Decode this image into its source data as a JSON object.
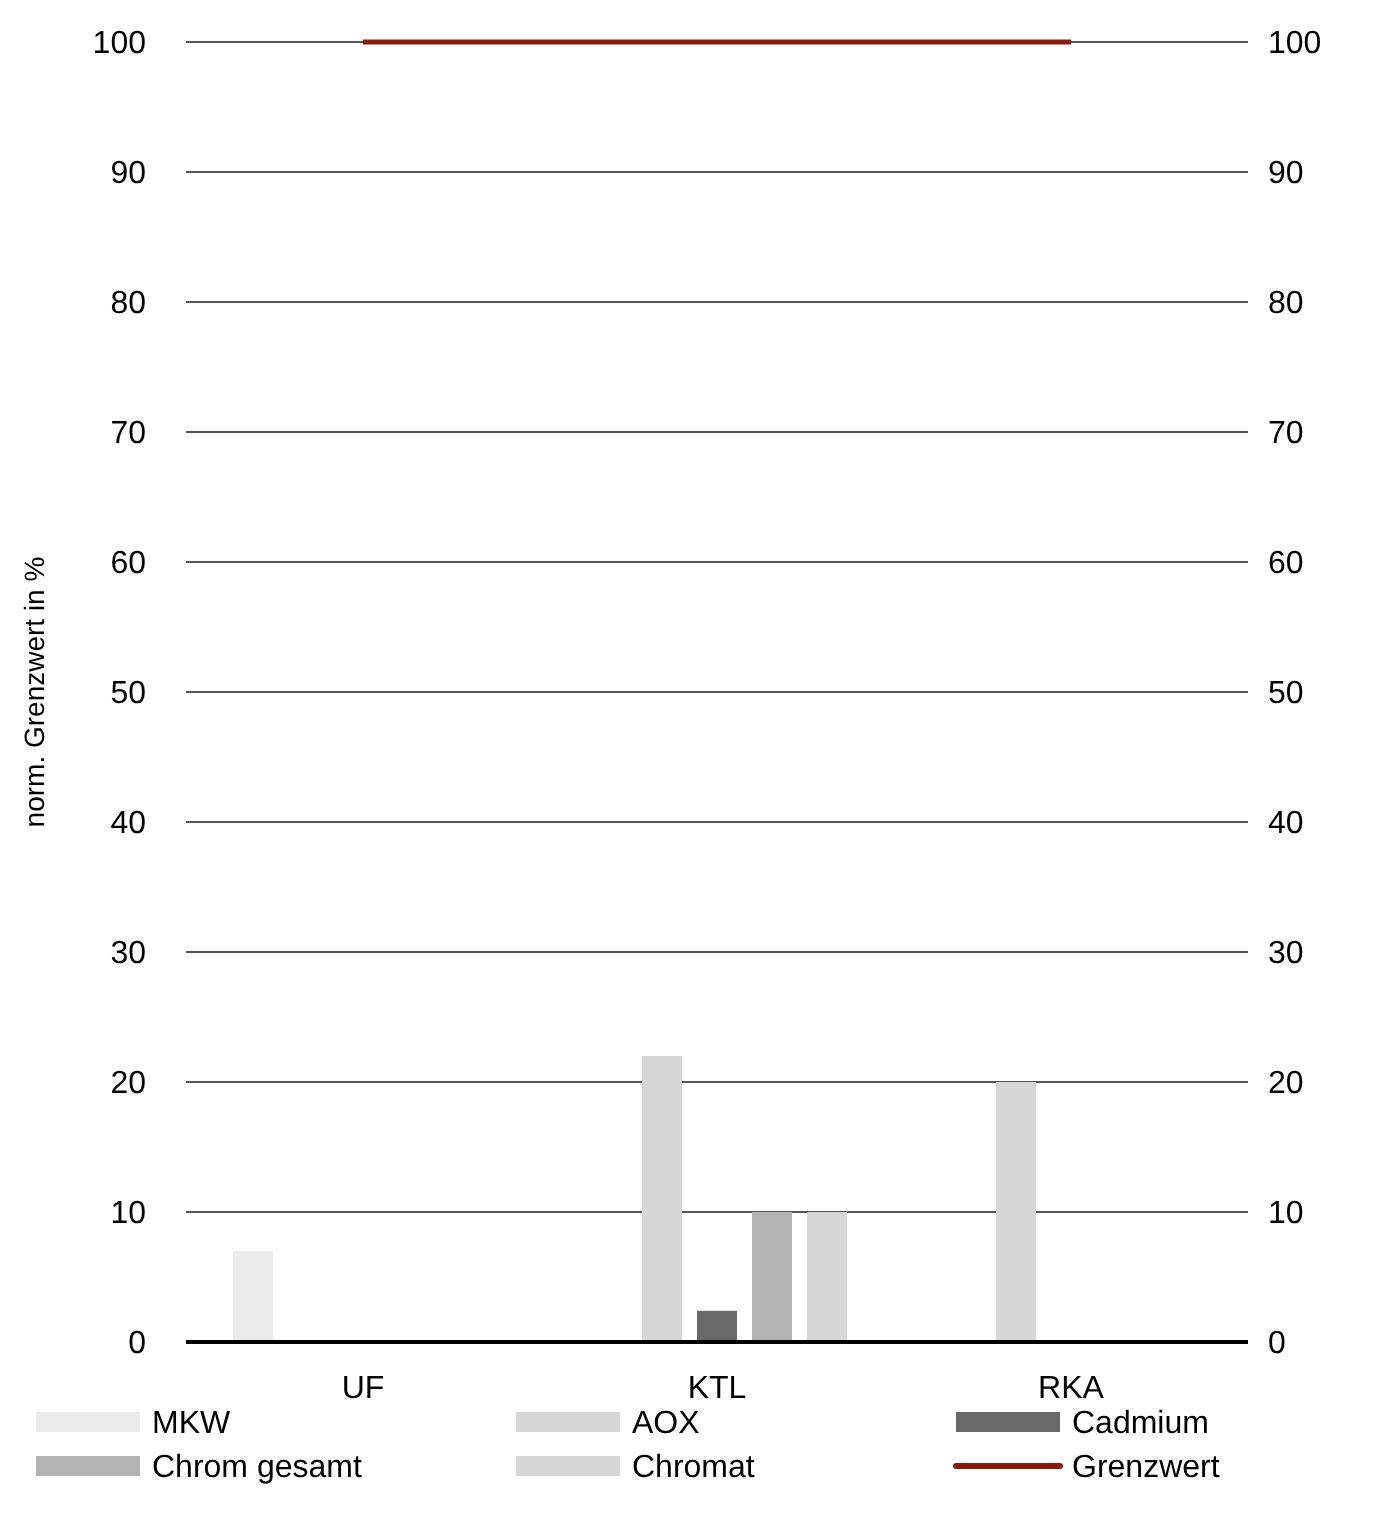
{
  "chart_data": {
    "type": "bar",
    "ylabel": "norm. Grenzwert in %",
    "categories": [
      "UF",
      "KTL",
      "RKA"
    ],
    "series": [
      {
        "name": "MKW",
        "color": "#ebebeb",
        "values": [
          7,
          null,
          null
        ]
      },
      {
        "name": "AOX",
        "color": "#d5d6d5",
        "values": [
          null,
          22,
          20
        ]
      },
      {
        "name": "Cadmium",
        "color": "#696969",
        "values": [
          null,
          2.4,
          null
        ]
      },
      {
        "name": "Chrom gesamt",
        "color": "#b3b3b3",
        "values": [
          null,
          10,
          null
        ]
      },
      {
        "name": "Chromat",
        "color": "#d5d6d5",
        "values": [
          null,
          10,
          null
        ]
      },
      {
        "name": "Grenzwert",
        "type": "line",
        "color": "#8b1a0e",
        "values": [
          100,
          100,
          100
        ]
      }
    ],
    "ylim": [
      0,
      100
    ],
    "yticks": [
      0,
      10,
      20,
      30,
      40,
      50,
      60,
      70,
      80,
      90,
      100
    ],
    "y2lim": [
      0,
      100
    ],
    "y2ticks": [
      0,
      10,
      20,
      30,
      40,
      50,
      60,
      70,
      80,
      90,
      100
    ],
    "grid": "y",
    "legend": "bottom"
  }
}
